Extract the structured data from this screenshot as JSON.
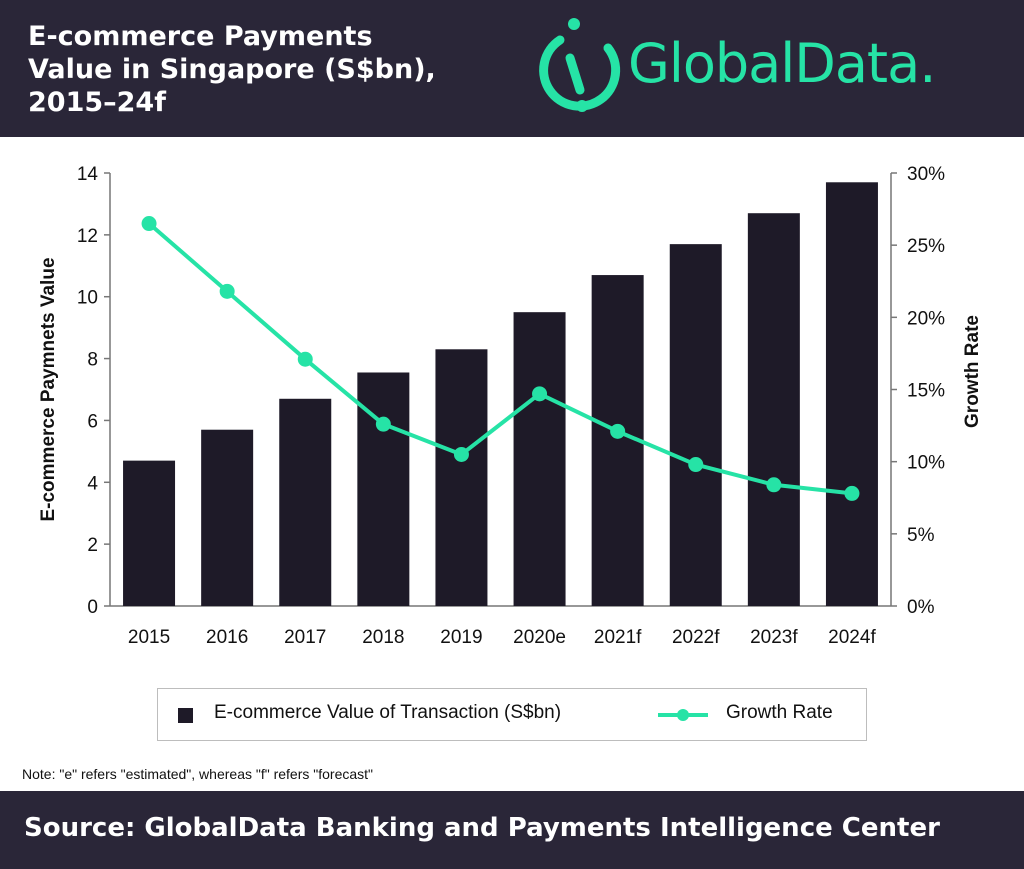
{
  "header": {
    "title": "E-commerce Payments\nValue in Singapore (S$bn),\n2015–24f",
    "logo_text": "GlobalData.",
    "logo_icon": "globaldata-logo-icon"
  },
  "colors": {
    "header_bg": "#2a2638",
    "bar": "#1e1a28",
    "line": "#26e3a6",
    "brand": "#26e3a6"
  },
  "chart_data": {
    "type": "bar",
    "categories": [
      "2015",
      "2016",
      "2017",
      "2018",
      "2019",
      "2020e",
      "2021f",
      "2022f",
      "2023f",
      "2024f"
    ],
    "series": [
      {
        "name": "E-commerce Value of Transaction (S$bn)",
        "type": "bar",
        "axis": "left",
        "values": [
          4.7,
          5.7,
          6.7,
          7.55,
          8.3,
          9.5,
          10.7,
          11.7,
          12.7,
          13.7
        ]
      },
      {
        "name": "Growth Rate",
        "type": "line",
        "axis": "right",
        "values": [
          26.5,
          21.8,
          17.1,
          12.6,
          10.5,
          14.7,
          12.1,
          9.8,
          8.4,
          7.8
        ]
      }
    ],
    "ylabel": "E-commerce Paymnets Value",
    "ylabel_right": "Growth Rate",
    "ylim": [
      0,
      14
    ],
    "ylim_right": [
      0,
      30
    ],
    "yticks": [
      0,
      2,
      4,
      6,
      8,
      10,
      12,
      14
    ],
    "yticks_right": [
      "0%",
      "5%",
      "10%",
      "15%",
      "20%",
      "25%",
      "30%"
    ],
    "grid": false,
    "legend_position": "bottom"
  },
  "legend": {
    "bar_label": "E-commerce Value of Transaction (S$bn)",
    "line_label": "Growth Rate"
  },
  "note": "Note: \"e\" refers \"estimated\", whereas \"f\" refers \"forecast\"",
  "footer": {
    "source": "Source: GlobalData Banking and Payments Intelligence Center"
  }
}
